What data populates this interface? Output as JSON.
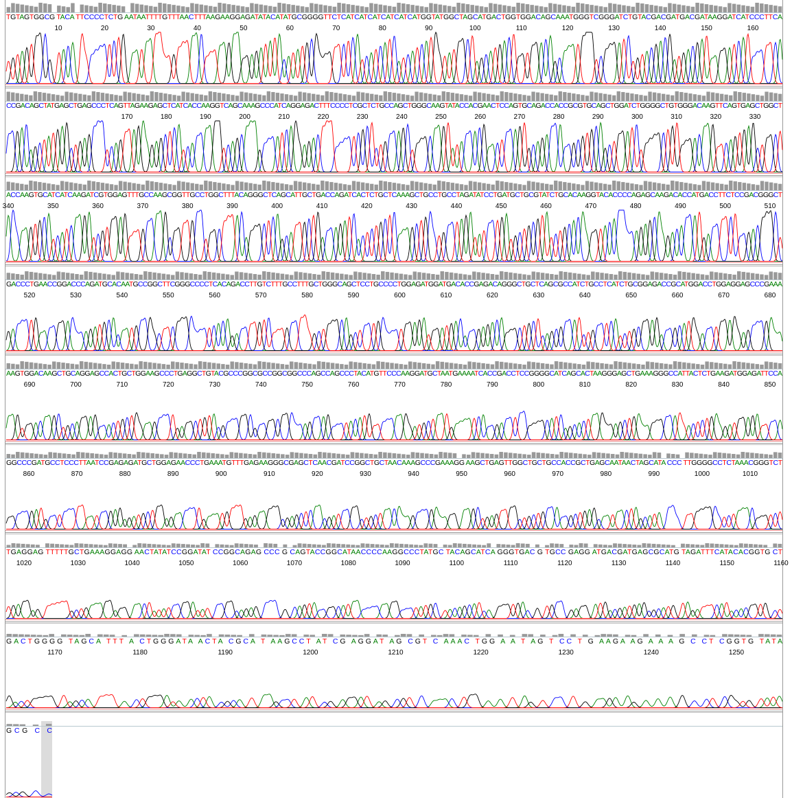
{
  "rows": [
    {
      "sequence": "TGTAGTGGCG TACA TTCCCCTCTG AATAATTTTGTTTAACTTTAAGAAGGAGATATACATATGCGGGGTTCTCATCATCATCATCATCATGGTATGGCTAGCATGACTGGTGGACAGCAAATGGGTCGGGATCTGTACGACGATGACGATAAGGATCATCCCTTCA",
      "positions": [
        10,
        20,
        30,
        40,
        50,
        60,
        70,
        80,
        90,
        100,
        110,
        120,
        130,
        140,
        150,
        160
      ]
    },
    {
      "sequence": "CCGACAGCTATGAGCTGAGCCCTCAGTTAGAAGAGCTCATCACCAAGGTCAGCAAAGCCCATCAGGAGACTTTCCCCTCGCTCTGCCAGCTGGGCAAGTATACCACGAACTCCAGTGCAGACCACCGCGTGCAGCTGGATCTGGGGCTGTGGGACAAGTTCAGTGAGCTGGCT",
      "positions": [
        170,
        180,
        190,
        200,
        210,
        220,
        230,
        240,
        250,
        260,
        270,
        280,
        290,
        300,
        310,
        320,
        330
      ]
    },
    {
      "sequence": "ACCAAGTGCATCATCAAGATCGTGGAGTTTGCCAAGCGGTTGCCTGGCTTTACAGGGCTCAGCATTGCTGACCAGATCACTCTGCTCAAAGCTGCCTGCCTAGATATCCTGATGCTGCGTATCTGCACAAGGTACACCCCAGAGCAAGACACCATGACCTTCTCCGACGGGCT",
      "positions": [
        340,
        350,
        360,
        370,
        380,
        390,
        400,
        410,
        420,
        430,
        440,
        450,
        460,
        470,
        480,
        490,
        500,
        510
      ]
    },
    {
      "sequence": "GACCCTGAACCGGACCCAGATGCACAATGCCGGCTTCGGGCCCCTCACAGACCTTGTCTTTGCCTTTGCTGGGCAGCTCCTGCCCCTGGAGATGGATGACACCGAGACAGGGCTGCTCAGCGCCATCTGCCTCATCTGCGGAGACCGCATGGACCTGGAGGAGCCCGAAA",
      "positions": [
        520,
        530,
        540,
        550,
        560,
        570,
        580,
        590,
        600,
        610,
        620,
        630,
        640,
        650,
        660,
        670,
        680
      ]
    },
    {
      "sequence": "AAGTGGACAAGCTGCAGGAGCCACTGCTGGAAGCCCTGAGGCTGTACGCCCGGCGCCGGCGGCCCAGCCAGCCCTACATGTTCCCAAGGATGCTAATGAAAATCACCGACCTCCGGGGCATCAGCACTAAGGGAGCTGAAAGGGCCATTACTCTGAAGATGGAGATTCCA",
      "positions": [
        690,
        700,
        710,
        720,
        730,
        740,
        750,
        760,
        770,
        780,
        790,
        800,
        810,
        820,
        830,
        840,
        850
      ]
    },
    {
      "sequence": "GGCCCGATGCCTCCCTTAATCCGAGAGATGCTGGAGAACCCTGAAATGTTTGAGAAGGGCGAGCTCAACGATCCGGCTGCTAACAAAGCCCGAAAGG AAGCTGAGTTGGCTGCTGCCACCGCTGAGCAATAACTAGCATA CCC TTGGGGCCTCTAAACGGGTCT",
      "positions": [
        860,
        870,
        880,
        890,
        900,
        910,
        920,
        930,
        940,
        950,
        960,
        970,
        980,
        990,
        1000,
        1010
      ]
    },
    {
      "sequence": "TGAGGAG TTTTTGCTGAAAGGAGG AACTATATCCGGATAT CCGGCAGAG CCC G CAGTACCGGCATAACCCCAAGGCCCTATGC TACAGCATCA GGGTGAC G TGCC GAGG ATGACGATGAGCGCATG TAGATTTCATACACGGTG CT",
      "positions": [
        1020,
        1030,
        1040,
        1050,
        1060,
        1070,
        1080,
        1090,
        1100,
        1110,
        1120,
        1130,
        1140,
        1150,
        1160
      ]
    },
    {
      "sequence": "GACTGGGG TAGCA TTT A CTGGGATA ACTA CGCA T AAGCCT AT CG AGGAT AG CGT C AAAC TGG A A T AG T CC T G AAGA AG A A A G C CT CGGTG TATA",
      "positions": [
        1170,
        1180,
        1190,
        1200,
        1210,
        1220,
        1230,
        1240,
        1250
      ]
    },
    {
      "sequence": "GCG C C",
      "positions": []
    }
  ]
}
